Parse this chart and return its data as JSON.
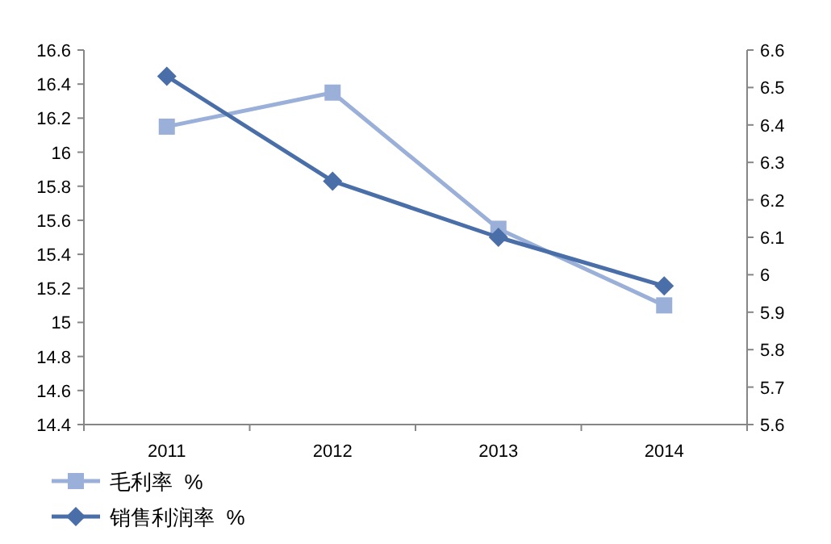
{
  "chart_data": {
    "type": "line",
    "categories": [
      "2011",
      "2012",
      "2013",
      "2014"
    ],
    "series": [
      {
        "name": "毛利率  %",
        "color": "#9bb0d8",
        "marker": "square",
        "values": [
          16.15,
          16.35,
          15.55,
          15.1
        ]
      },
      {
        "name": "销售利润率  %",
        "color": "#4a6fa8",
        "marker": "diamond",
        "axis": "y2",
        "values": [
          6.53,
          6.25,
          6.1,
          5.97
        ]
      }
    ],
    "ylim": [
      14.4,
      16.6
    ],
    "yticks": [
      14.4,
      14.6,
      14.8,
      15,
      15.2,
      15.4,
      15.6,
      15.8,
      16,
      16.2,
      16.4,
      16.6
    ],
    "y2lim": [
      5.6,
      6.6
    ],
    "y2ticks": [
      5.6,
      5.7,
      5.8,
      5.9,
      6,
      6.1,
      6.2,
      6.3,
      6.4,
      6.5,
      6.6
    ],
    "grid": false,
    "legend": "bottom left"
  }
}
